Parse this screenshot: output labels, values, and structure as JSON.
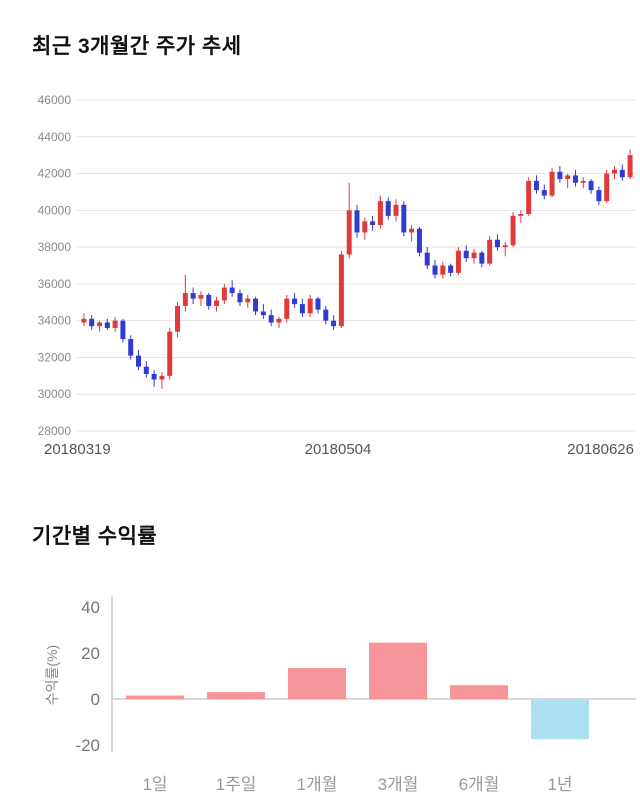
{
  "chart_data": [
    {
      "type": "candlestick",
      "title": "최근 3개월간 주가 추세",
      "x_labels": [
        "20180319",
        "20180504",
        "20180626"
      ],
      "y_ticks": [
        46000,
        44000,
        42000,
        40000,
        38000,
        36000,
        34000,
        32000,
        30000,
        28000
      ],
      "ylim": [
        28000,
        46000
      ],
      "up_color": "#e03a3a",
      "down_color": "#2f3ccf",
      "grid_color": "#e4e4e4",
      "tick_color": "#8a8a8a",
      "date_color": "#555555",
      "candles": [
        [
          33900,
          34400,
          33700,
          34100
        ],
        [
          34100,
          34300,
          33500,
          33700
        ],
        [
          33700,
          34000,
          33400,
          33900
        ],
        [
          33900,
          34100,
          33500,
          33600
        ],
        [
          33600,
          34200,
          33400,
          34000
        ],
        [
          34000,
          34100,
          32800,
          33000
        ],
        [
          33000,
          33200,
          31900,
          32100
        ],
        [
          32100,
          32400,
          31300,
          31500
        ],
        [
          31500,
          31800,
          30900,
          31100
        ],
        [
          31100,
          31300,
          30400,
          30800
        ],
        [
          30800,
          31200,
          30300,
          31000
        ],
        [
          31000,
          33600,
          30800,
          33400
        ],
        [
          33400,
          35000,
          33100,
          34800
        ],
        [
          34800,
          36500,
          34500,
          35500
        ],
        [
          35500,
          35800,
          34900,
          35200
        ],
        [
          35200,
          35600,
          34800,
          35400
        ],
        [
          35400,
          35500,
          34600,
          34800
        ],
        [
          34800,
          35300,
          34500,
          35100
        ],
        [
          35100,
          36000,
          34900,
          35800
        ],
        [
          35800,
          36200,
          35300,
          35500
        ],
        [
          35500,
          35700,
          34800,
          35000
        ],
        [
          35000,
          35400,
          34700,
          35200
        ],
        [
          35200,
          35300,
          34300,
          34500
        ],
        [
          34500,
          34900,
          34100,
          34300
        ],
        [
          34300,
          34600,
          33700,
          33900
        ],
        [
          33900,
          34200,
          33600,
          34100
        ],
        [
          34100,
          35400,
          33900,
          35200
        ],
        [
          35200,
          35500,
          34700,
          34900
        ],
        [
          34900,
          35200,
          34200,
          34400
        ],
        [
          34400,
          35400,
          34200,
          35200
        ],
        [
          35200,
          35300,
          34400,
          34600
        ],
        [
          34600,
          34800,
          33800,
          34000
        ],
        [
          34000,
          34300,
          33500,
          33700
        ],
        [
          33700,
          37800,
          33600,
          37600
        ],
        [
          37600,
          41500,
          37400,
          40000
        ],
        [
          40000,
          40300,
          38500,
          38800
        ],
        [
          38800,
          39600,
          38400,
          39400
        ],
        [
          39400,
          39700,
          38900,
          39200
        ],
        [
          39200,
          40800,
          39000,
          40500
        ],
        [
          40500,
          40700,
          39500,
          39700
        ],
        [
          39700,
          40600,
          39400,
          40300
        ],
        [
          40300,
          40500,
          38600,
          38800
        ],
        [
          38800,
          39200,
          38300,
          39000
        ],
        [
          39000,
          39100,
          37500,
          37700
        ],
        [
          37700,
          38000,
          36800,
          37000
        ],
        [
          37000,
          37300,
          36300,
          36500
        ],
        [
          36500,
          37200,
          36300,
          37000
        ],
        [
          37000,
          37100,
          36400,
          36600
        ],
        [
          36600,
          38000,
          36500,
          37800
        ],
        [
          37800,
          38100,
          37200,
          37400
        ],
        [
          37400,
          37900,
          37100,
          37700
        ],
        [
          37700,
          37800,
          36900,
          37100
        ],
        [
          37100,
          38600,
          37000,
          38400
        ],
        [
          38400,
          38700,
          37800,
          38000
        ],
        [
          38000,
          38300,
          37500,
          38100
        ],
        [
          38100,
          39900,
          38000,
          39700
        ],
        [
          39700,
          40000,
          39300,
          39800
        ],
        [
          39800,
          41800,
          39700,
          41600
        ],
        [
          41600,
          41900,
          40900,
          41100
        ],
        [
          41100,
          41400,
          40600,
          40800
        ],
        [
          40800,
          42300,
          40700,
          42100
        ],
        [
          42100,
          42400,
          41500,
          41700
        ],
        [
          41700,
          42000,
          41200,
          41900
        ],
        [
          41900,
          42200,
          41300,
          41500
        ],
        [
          41500,
          41800,
          41200,
          41600
        ],
        [
          41600,
          41700,
          40900,
          41100
        ],
        [
          41100,
          41300,
          40300,
          40500
        ],
        [
          40500,
          42200,
          40400,
          42000
        ],
        [
          42000,
          42400,
          41700,
          42200
        ],
        [
          42200,
          42500,
          41600,
          41800
        ],
        [
          41800,
          43300,
          41700,
          43000
        ]
      ]
    },
    {
      "type": "bar",
      "title": "기간별 수익률",
      "ylabel": "수익률(%)",
      "categories": [
        "1일",
        "1주일",
        "1개월",
        "3개월",
        "6개월",
        "1년"
      ],
      "values": [
        1.5,
        3,
        13.5,
        24.5,
        6,
        -17
      ],
      "y_ticks": [
        40,
        20,
        0,
        -20
      ],
      "ylim": [
        -25,
        45
      ],
      "pos_color": "#f59599",
      "neg_color": "#abe0f2",
      "axis_color": "#cccccc",
      "tick_color": "#777777",
      "category_color": "#999999",
      "legend_position": "none",
      "grid": false
    }
  ]
}
